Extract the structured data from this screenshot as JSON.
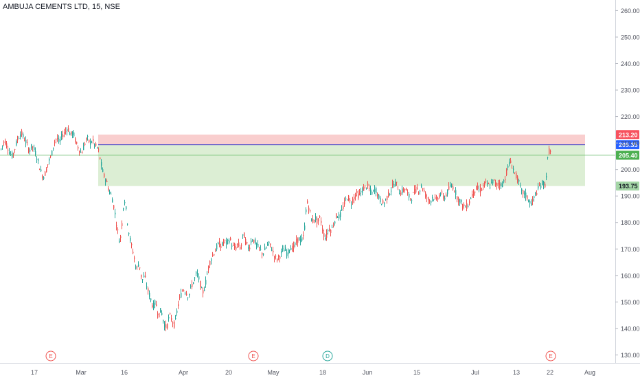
{
  "header": {
    "symbol_title": "AMBUJA CEMENTS LTD, 15, NSE"
  },
  "colors": {
    "up": "#26a69a",
    "down": "#ef5350",
    "stop_zone": "#f8c6c6",
    "profit_zone": "#d6ebcc",
    "entry_line": "#3037c9",
    "price_line": "#4caf50",
    "axis_text": "#50535e",
    "stop_label": "#f7525f",
    "entry_label": "#2962ff",
    "price_label": "#4caf50",
    "target_label": "#a5d6a7"
  },
  "chart_data": {
    "type": "candlestick",
    "symbol": "AMBUJA CEMENTS LTD",
    "interval": "15",
    "exchange": "NSE",
    "ylim": [
      127,
      264
    ],
    "y_ticks": [
      130,
      140,
      150,
      160,
      170,
      180,
      190,
      200,
      210,
      220,
      230,
      240,
      250,
      260
    ],
    "y_tick_labels": [
      "130.00",
      "140.00",
      "150.00",
      "160.00",
      "170.00",
      "180.00",
      "190.00",
      "200.00",
      "210.00",
      "220.00",
      "230.00",
      "240.00",
      "250.00",
      "260.00"
    ],
    "x_tick_labels": [
      "17",
      "Mar",
      "16",
      "Apr",
      "20",
      "May",
      "18",
      "Jun",
      "15",
      "Jul",
      "13",
      "22",
      "Aug"
    ],
    "price_path": [
      [
        0,
        207
      ],
      [
        6,
        211
      ],
      [
        10,
        209
      ],
      [
        14,
        206
      ],
      [
        18,
        205
      ],
      [
        22,
        209
      ],
      [
        26,
        212
      ],
      [
        30,
        214
      ],
      [
        34,
        212
      ],
      [
        38,
        210
      ],
      [
        42,
        207
      ],
      [
        46,
        209
      ],
      [
        50,
        207
      ],
      [
        54,
        204
      ],
      [
        58,
        200
      ],
      [
        62,
        197
      ],
      [
        66,
        199
      ],
      [
        70,
        203
      ],
      [
        74,
        205
      ],
      [
        78,
        210
      ],
      [
        82,
        212
      ],
      [
        86,
        210
      ],
      [
        90,
        213
      ],
      [
        94,
        214
      ],
      [
        98,
        216
      ],
      [
        102,
        213
      ],
      [
        106,
        214
      ],
      [
        110,
        210
      ],
      [
        114,
        208
      ],
      [
        118,
        206
      ],
      [
        122,
        209
      ],
      [
        126,
        212
      ],
      [
        130,
        210
      ],
      [
        134,
        211
      ],
      [
        138,
        209
      ],
      [
        142,
        208
      ],
      [
        146,
        203
      ],
      [
        150,
        198
      ],
      [
        154,
        196
      ],
      [
        158,
        192
      ],
      [
        162,
        190
      ],
      [
        166,
        185
      ],
      [
        170,
        178
      ],
      [
        174,
        172
      ],
      [
        178,
        182
      ],
      [
        180,
        190
      ],
      [
        183,
        185
      ],
      [
        186,
        178
      ],
      [
        190,
        172
      ],
      [
        194,
        168
      ],
      [
        198,
        162
      ],
      [
        202,
        165
      ],
      [
        206,
        158
      ],
      [
        210,
        160
      ],
      [
        214,
        155
      ],
      [
        218,
        152
      ],
      [
        222,
        148
      ],
      [
        226,
        150
      ],
      [
        230,
        145
      ],
      [
        234,
        147
      ],
      [
        238,
        142
      ],
      [
        242,
        140
      ],
      [
        246,
        145
      ],
      [
        250,
        143
      ],
      [
        254,
        141
      ],
      [
        258,
        148
      ],
      [
        262,
        152
      ],
      [
        266,
        155
      ],
      [
        270,
        154
      ],
      [
        274,
        152
      ],
      [
        278,
        156
      ],
      [
        282,
        158
      ],
      [
        286,
        161
      ],
      [
        290,
        158
      ],
      [
        294,
        153
      ],
      [
        298,
        156
      ],
      [
        302,
        162
      ],
      [
        306,
        166
      ],
      [
        310,
        168
      ],
      [
        314,
        170
      ],
      [
        318,
        172
      ],
      [
        322,
        171
      ],
      [
        326,
        173
      ],
      [
        330,
        172
      ],
      [
        334,
        174
      ],
      [
        338,
        171
      ],
      [
        342,
        170
      ],
      [
        346,
        172
      ],
      [
        350,
        170
      ],
      [
        354,
        176
      ],
      [
        358,
        172
      ],
      [
        362,
        170
      ],
      [
        366,
        174
      ],
      [
        370,
        173
      ],
      [
        374,
        171
      ],
      [
        378,
        170
      ],
      [
        382,
        168
      ],
      [
        386,
        170
      ],
      [
        390,
        172
      ],
      [
        394,
        171
      ],
      [
        398,
        168
      ],
      [
        402,
        166
      ],
      [
        406,
        167
      ],
      [
        410,
        169
      ],
      [
        414,
        170
      ],
      [
        418,
        168
      ],
      [
        422,
        171
      ],
      [
        426,
        170
      ],
      [
        430,
        172
      ],
      [
        434,
        174
      ],
      [
        438,
        173
      ],
      [
        442,
        175
      ],
      [
        446,
        188
      ],
      [
        450,
        185
      ],
      [
        454,
        180
      ],
      [
        458,
        182
      ],
      [
        462,
        180
      ],
      [
        466,
        182
      ],
      [
        470,
        176
      ],
      [
        474,
        174
      ],
      [
        478,
        178
      ],
      [
        482,
        177
      ],
      [
        486,
        180
      ],
      [
        490,
        183
      ],
      [
        494,
        182
      ],
      [
        498,
        185
      ],
      [
        502,
        188
      ],
      [
        506,
        190
      ],
      [
        510,
        187
      ],
      [
        514,
        189
      ],
      [
        518,
        191
      ],
      [
        522,
        190
      ],
      [
        526,
        192
      ],
      [
        530,
        193
      ],
      [
        534,
        194
      ],
      [
        538,
        192
      ],
      [
        542,
        191
      ],
      [
        546,
        193
      ],
      [
        550,
        190
      ],
      [
        554,
        188
      ],
      [
        558,
        187
      ],
      [
        562,
        189
      ],
      [
        566,
        191
      ],
      [
        570,
        193
      ],
      [
        574,
        195
      ],
      [
        578,
        194
      ],
      [
        582,
        191
      ],
      [
        586,
        192
      ],
      [
        590,
        193
      ],
      [
        594,
        190
      ],
      [
        598,
        189
      ],
      [
        602,
        191
      ],
      [
        606,
        193
      ],
      [
        610,
        192
      ],
      [
        614,
        194
      ],
      [
        618,
        191
      ],
      [
        622,
        189
      ],
      [
        626,
        188
      ],
      [
        630,
        190
      ],
      [
        634,
        188
      ],
      [
        638,
        190
      ],
      [
        642,
        191
      ],
      [
        646,
        189
      ],
      [
        650,
        191
      ],
      [
        654,
        193
      ],
      [
        658,
        194
      ],
      [
        662,
        192
      ],
      [
        666,
        189
      ],
      [
        670,
        188
      ],
      [
        674,
        186
      ],
      [
        678,
        186
      ],
      [
        682,
        187
      ],
      [
        686,
        190
      ],
      [
        690,
        192
      ],
      [
        694,
        193
      ],
      [
        698,
        192
      ],
      [
        702,
        193
      ],
      [
        706,
        195
      ],
      [
        710,
        194
      ],
      [
        714,
        194
      ],
      [
        718,
        196
      ],
      [
        722,
        194
      ],
      [
        726,
        195
      ],
      [
        730,
        194
      ],
      [
        734,
        196
      ],
      [
        738,
        200
      ],
      [
        742,
        203
      ],
      [
        746,
        201
      ],
      [
        750,
        198
      ],
      [
        754,
        196
      ],
      [
        758,
        192
      ],
      [
        762,
        191
      ],
      [
        766,
        190
      ],
      [
        770,
        188
      ],
      [
        774,
        187
      ],
      [
        778,
        190
      ],
      [
        782,
        192
      ],
      [
        786,
        194
      ],
      [
        790,
        195
      ],
      [
        794,
        194
      ],
      [
        796,
        202
      ],
      [
        799,
        207
      ],
      [
        802,
        206
      ]
    ],
    "drawn_levels": {
      "stop_loss": 213.2,
      "entry": 209.35,
      "current_price": 205.4,
      "target": 193.75
    },
    "price_labels": {
      "stop_loss": "213.20",
      "entry": "209.35",
      "current_price": "205.40",
      "target": "193.75"
    },
    "event_markers": [
      {
        "label": "E",
        "type": "earnings"
      },
      {
        "label": "E",
        "type": "earnings"
      },
      {
        "label": "D",
        "type": "dividend"
      },
      {
        "label": "E",
        "type": "earnings"
      }
    ]
  }
}
